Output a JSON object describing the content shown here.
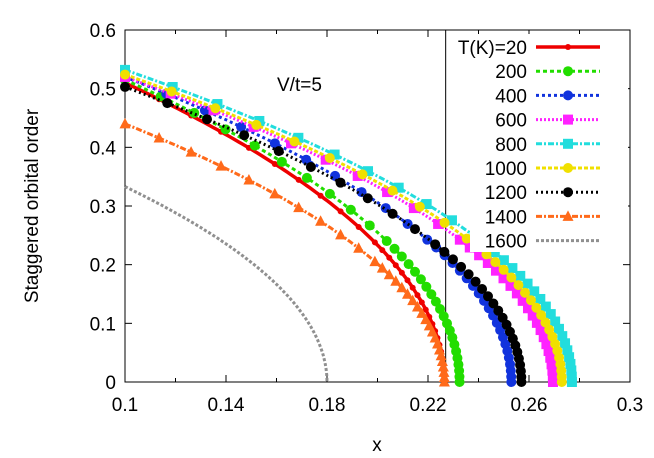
{
  "chart_data": {
    "type": "line",
    "title": "",
    "xlabel": "x",
    "ylabel": "Staggered orbital order",
    "xlim": [
      0.1,
      0.3
    ],
    "ylim": [
      0,
      0.6
    ],
    "xticks": [
      "0.1",
      "0.14",
      "0.18",
      "0.22",
      "0.26",
      "0.3"
    ],
    "yticks": [
      "0",
      "0.1",
      "0.2",
      "0.3",
      "0.4",
      "0.5",
      "0.6"
    ],
    "grid": false,
    "legend_position": "top-right",
    "legend_prefix": "T(K)=",
    "annotation": "V/t=5",
    "vertical_line_x": 0.227,
    "series": [
      {
        "name": "20",
        "color": "#ee0000",
        "marker": "circle",
        "dash": "",
        "x0": 0.1,
        "y0": 0.51,
        "xc": 0.2265
      },
      {
        "name": "200",
        "color": "#22dd00",
        "marker": "circle",
        "dash": "4,3",
        "x0": 0.1,
        "y0": 0.515,
        "xc": 0.2325
      },
      {
        "name": "400",
        "color": "#1133dd",
        "marker": "circle",
        "dash": "3,3",
        "x0": 0.1,
        "y0": 0.52,
        "xc": 0.253
      },
      {
        "name": "600",
        "color": "#ff22ff",
        "marker": "square",
        "dash": "2,2",
        "x0": 0.1,
        "y0": 0.52,
        "xc": 0.2695
      },
      {
        "name": "800",
        "color": "#22dddd",
        "marker": "square",
        "dash": "6,2,2,2",
        "x0": 0.1,
        "y0": 0.532,
        "xc": 0.277
      },
      {
        "name": "1000",
        "color": "#f0e000",
        "marker": "circle",
        "dash": "4,2",
        "x0": 0.1,
        "y0": 0.524,
        "xc": 0.273
      },
      {
        "name": "1200",
        "color": "#000000",
        "marker": "circle",
        "dash": "2,3",
        "x0": 0.1,
        "y0": 0.503,
        "xc": 0.257
      },
      {
        "name": "1400",
        "color": "#ff6a1a",
        "marker": "triangle",
        "dash": "6,2,2,2",
        "x0": 0.1,
        "y0": 0.44,
        "xc": 0.2265
      },
      {
        "name": "1600",
        "color": "#909090",
        "marker": "none",
        "dash": "3,2",
        "x0": 0.1,
        "y0": 0.333,
        "xc": 0.18
      }
    ]
  }
}
